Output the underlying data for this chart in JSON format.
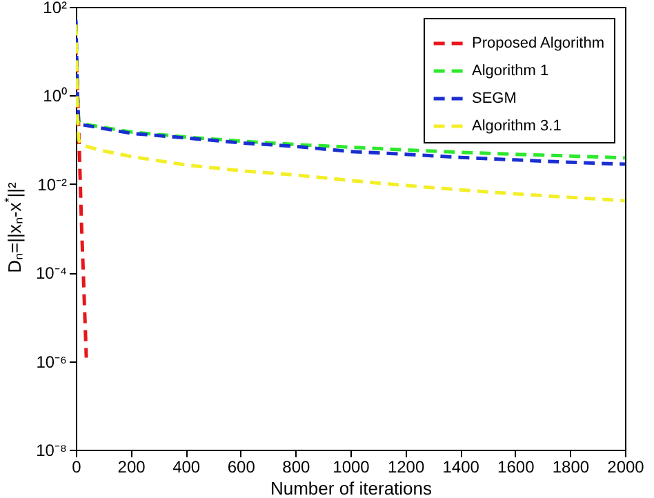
{
  "chart_data": {
    "type": "line",
    "xlabel": "Number of iterations",
    "ylabel": "Dₙ=||xₙ-x$^{*}$||²",
    "log": "y",
    "xlim": [
      0,
      2000
    ],
    "xticks": [
      0,
      200,
      400,
      600,
      800,
      1000,
      1200,
      1400,
      1600,
      1800,
      2000
    ],
    "ylim": [
      1e-08,
      100
    ],
    "yticks": [
      {
        "value": 1e-08,
        "label": "10⁻⁸"
      },
      {
        "value": 1e-06,
        "label": "10⁻⁶"
      },
      {
        "value": 0.0001,
        "label": "10⁻⁴"
      },
      {
        "value": 0.01,
        "label": "10⁻²"
      },
      {
        "value": 1,
        "label": "10⁰"
      },
      {
        "value": 100,
        "label": "10²"
      }
    ],
    "grid": false,
    "legend": "top right",
    "line_style": "dashed",
    "marker": "none",
    "series": [
      {
        "name": "Proposed Algorithm",
        "color": "#e8161b",
        "x": [
          0,
          5,
          10,
          20,
          30,
          38
        ],
        "values": [
          15,
          2,
          0.2,
          0.0015,
          3e-05,
          1.2e-06
        ]
      },
      {
        "name": "Algorithm 1",
        "color": "#2ee82e",
        "x": [
          0,
          3,
          6,
          10,
          20,
          100,
          200,
          400,
          600,
          800,
          1000,
          1200,
          1400,
          1600,
          1800,
          2000
        ],
        "values": [
          45,
          6,
          1.1,
          0.27,
          0.23,
          0.19,
          0.15,
          0.115,
          0.093,
          0.078,
          0.068,
          0.059,
          0.052,
          0.047,
          0.043,
          0.039
        ]
      },
      {
        "name": "SEGM",
        "color": "#1a2fd0",
        "x": [
          0,
          3,
          6,
          10,
          20,
          100,
          200,
          400,
          600,
          800,
          1000,
          1200,
          1400,
          1600,
          1800,
          2000
        ],
        "values": [
          50,
          6.3,
          1,
          0.25,
          0.22,
          0.18,
          0.14,
          0.11,
          0.085,
          0.071,
          0.054,
          0.047,
          0.04,
          0.035,
          0.031,
          0.028
        ]
      },
      {
        "name": "Algorithm 3.1",
        "color": "#f2ef2a",
        "x": [
          0,
          3,
          6,
          10,
          20,
          100,
          200,
          400,
          600,
          800,
          1000,
          1200,
          1400,
          1600,
          1800,
          2000
        ],
        "values": [
          40,
          3.2,
          0.32,
          0.1,
          0.076,
          0.056,
          0.042,
          0.027,
          0.02,
          0.016,
          0.012,
          0.0093,
          0.0074,
          0.006,
          0.005,
          0.0042
        ]
      }
    ]
  }
}
